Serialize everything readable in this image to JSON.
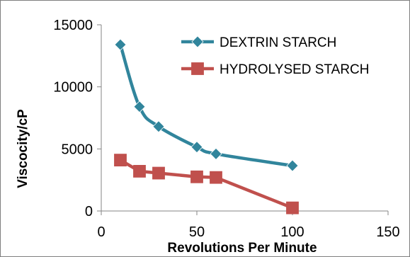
{
  "chart_data": {
    "type": "line",
    "xlabel": "Revolutions Per Minute",
    "ylabel": "Viscocity/cP",
    "xlim": [
      0,
      150
    ],
    "ylim": [
      0,
      15000
    ],
    "xticks": [
      0,
      50,
      100,
      150
    ],
    "yticks": [
      0,
      5000,
      10000,
      15000
    ],
    "grid": false,
    "legend_position": "top-right",
    "series": [
      {
        "name": "DEXTRIN STARCH",
        "color": "#31859c",
        "marker": "diamond",
        "x": [
          10,
          20,
          30,
          50,
          60,
          100
        ],
        "y": [
          13400,
          8400,
          6800,
          5150,
          4600,
          3650
        ]
      },
      {
        "name": "HYDROLYSED STARCH",
        "color": "#c0504d",
        "marker": "square",
        "x": [
          10,
          20,
          30,
          50,
          60,
          100
        ],
        "y": [
          4100,
          3200,
          3050,
          2750,
          2700,
          250
        ]
      }
    ]
  }
}
